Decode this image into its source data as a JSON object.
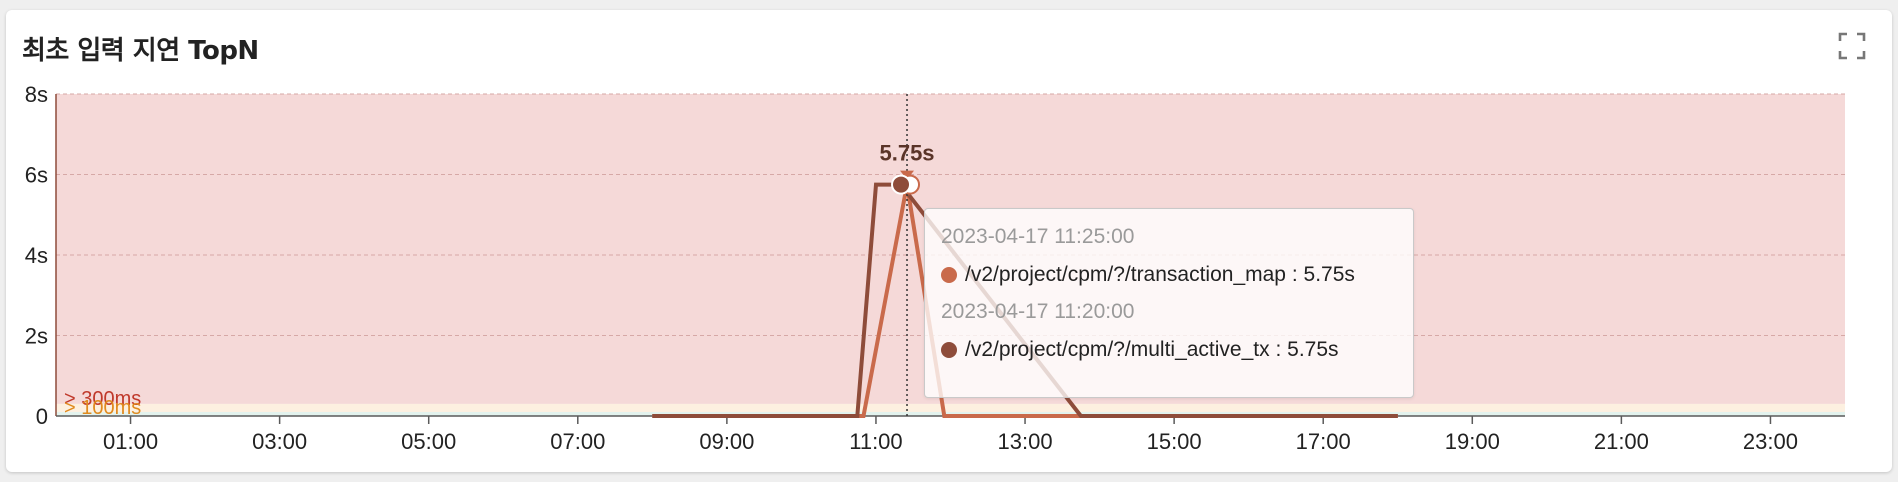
{
  "card": {
    "title": "최초 입력 지연 TopN"
  },
  "colors": {
    "band_bad": "#f5d9d8",
    "band_warn": "#fdf0e0",
    "band_good": "#e3f3ee",
    "series_transaction_map": "#c96a4b",
    "series_multi_active_tx": "#8e4c3a",
    "threshold_bad": "#c0392b",
    "threshold_warn": "#e08a1e"
  },
  "chart_data": {
    "type": "line",
    "xlim": [
      "00:00",
      "24:00"
    ],
    "ylim": [
      0,
      8
    ],
    "x_ticks": [
      "01:00",
      "03:00",
      "05:00",
      "07:00",
      "09:00",
      "11:00",
      "13:00",
      "15:00",
      "17:00",
      "19:00",
      "21:00",
      "23:00"
    ],
    "y_ticks": [
      "0",
      "2s",
      "4s",
      "6s",
      "8s"
    ],
    "grid": true,
    "thresholds": [
      {
        "label": "> 300ms",
        "value": 0.3,
        "color": "#c0392b"
      },
      {
        "label": "> 100ms",
        "value": 0.1,
        "color": "#e08a1e"
      }
    ],
    "series": [
      {
        "name": "/v2/project/cpm/?/transaction_map",
        "color": "#c96a4b",
        "points": [
          [
            "08:00",
            0
          ],
          [
            "10:50",
            0
          ],
          [
            "11:25",
            5.75
          ],
          [
            "11:55",
            0
          ],
          [
            "18:00",
            0
          ]
        ]
      },
      {
        "name": "/v2/project/cpm/?/multi_active_tx",
        "color": "#8e4c3a",
        "points": [
          [
            "08:00",
            0
          ],
          [
            "10:45",
            0
          ],
          [
            "11:00",
            5.75
          ],
          [
            "11:20",
            5.75
          ],
          [
            "13:45",
            0
          ],
          [
            "18:00",
            0
          ]
        ]
      }
    ],
    "highlight": {
      "x": "11:25",
      "label": "5.75s"
    },
    "tooltip": {
      "entries": [
        {
          "time": "2023-04-17 11:25:00",
          "name": "/v2/project/cpm/?/transaction_map",
          "value": "5.75s",
          "color": "#c96a4b"
        },
        {
          "time": "2023-04-17 11:20:00",
          "name": "/v2/project/cpm/?/multi_active_tx",
          "value": "5.75s",
          "color": "#8e4c3a"
        }
      ]
    }
  }
}
